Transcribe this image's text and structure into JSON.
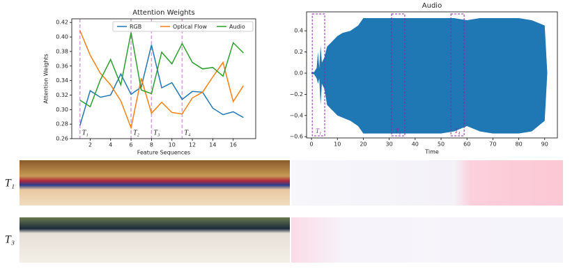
{
  "chart_data": [
    {
      "type": "line",
      "title": "Attention Weights",
      "xlabel": "Feature Sequences",
      "ylabel": "Attention Weights",
      "x": [
        1,
        2,
        3,
        4,
        5,
        6,
        7,
        8,
        9,
        10,
        11,
        12,
        13,
        14,
        15,
        16,
        17
      ],
      "series": [
        {
          "name": "RGB",
          "color": "#1f77b4",
          "values": [
            0.278,
            0.326,
            0.317,
            0.32,
            0.349,
            0.321,
            0.331,
            0.389,
            0.33,
            0.337,
            0.314,
            0.325,
            0.324,
            0.302,
            0.293,
            0.297,
            0.289
          ]
        },
        {
          "name": "Optical Flow",
          "color": "#ff7f0e",
          "values": [
            0.409,
            0.375,
            0.35,
            0.334,
            0.312,
            0.275,
            0.343,
            0.295,
            0.31,
            0.296,
            0.294,
            0.316,
            0.324,
            0.345,
            0.365,
            0.311,
            0.333
          ]
        },
        {
          "name": "Audio",
          "color": "#2ca02c",
          "values": [
            0.313,
            0.304,
            0.341,
            0.369,
            0.334,
            0.406,
            0.327,
            0.322,
            0.379,
            0.363,
            0.391,
            0.365,
            0.356,
            0.358,
            0.346,
            0.392,
            0.378
          ]
        }
      ],
      "markers": [
        {
          "x": 1,
          "label": "T₁"
        },
        {
          "x": 6,
          "label": "T₂"
        },
        {
          "x": 8,
          "label": "T₃"
        },
        {
          "x": 11,
          "label": "T₄"
        }
      ],
      "marker_color": "#d59be0",
      "xlim": [
        0.2,
        18.2
      ],
      "xticks": [
        2,
        4,
        6,
        8,
        10,
        12,
        14,
        16
      ],
      "ylim": [
        0.26,
        0.425
      ],
      "yticks": [
        {
          "value": 0.26,
          "label": "0.26"
        },
        {
          "value": 0.28,
          "label": "0.28"
        },
        {
          "value": 0.3,
          "label": "0.30"
        },
        {
          "value": 0.32,
          "label": "0.32"
        },
        {
          "value": 0.34,
          "label": "0.34"
        },
        {
          "value": 0.36,
          "label": "0.36"
        },
        {
          "value": 0.38,
          "label": "0.38"
        },
        {
          "value": 0.4,
          "label": "0.40"
        },
        {
          "value": 0.42,
          "label": "0.42"
        }
      ],
      "legend": "upper right"
    },
    {
      "type": "area",
      "title": "Audio",
      "xlabel": "Time",
      "color": "#1f77b4",
      "envelope": {
        "x": [
          0,
          1,
          2,
          2.5,
          3,
          3.5,
          4,
          5,
          6,
          8,
          10,
          12,
          15,
          18,
          20,
          25,
          30,
          35,
          40,
          45,
          50,
          55,
          60,
          65,
          70,
          75,
          80,
          85,
          90,
          91
        ],
        "upper": [
          0.01,
          0.01,
          0.05,
          0.2,
          0.05,
          0.26,
          0.1,
          0.15,
          0.25,
          0.3,
          0.35,
          0.38,
          0.4,
          0.45,
          0.52,
          0.52,
          0.52,
          0.52,
          0.52,
          0.52,
          0.52,
          0.52,
          0.5,
          0.52,
          0.52,
          0.52,
          0.52,
          0.5,
          0.45,
          0
        ],
        "lower": [
          -0.01,
          -0.01,
          -0.05,
          -0.1,
          -0.05,
          -0.3,
          -0.1,
          -0.15,
          -0.3,
          -0.35,
          -0.4,
          -0.42,
          -0.45,
          -0.5,
          -0.57,
          -0.57,
          -0.57,
          -0.57,
          -0.57,
          -0.57,
          -0.57,
          -0.55,
          -0.5,
          -0.55,
          -0.57,
          -0.57,
          -0.57,
          -0.55,
          -0.45,
          0
        ]
      },
      "segments": [
        {
          "x": [
            0.3,
            5.1
          ],
          "label": "T₁"
        },
        {
          "x": [
            30.9,
            36
          ],
          "label": "T₂"
        },
        {
          "x": [
            53.8,
            58.9
          ],
          "label": "T₄"
        }
      ],
      "segment_color": "#8e24aa",
      "xlim": [
        -1.9,
        94.9
      ],
      "xticks": [
        0,
        10,
        20,
        30,
        40,
        50,
        60,
        70,
        80,
        90
      ],
      "ylim": [
        -0.612,
        0.579
      ],
      "yticks": [
        {
          "value": -0.6,
          "label": "−0.6"
        },
        {
          "value": -0.4,
          "label": "−0.4"
        },
        {
          "value": -0.2,
          "label": "−0.2"
        },
        {
          "value": 0,
          "label": "0.0"
        },
        0.2,
        0.4
      ]
    }
  ],
  "image_rows": [
    {
      "label": "T₁"
    },
    {
      "label": "T₃"
    }
  ]
}
